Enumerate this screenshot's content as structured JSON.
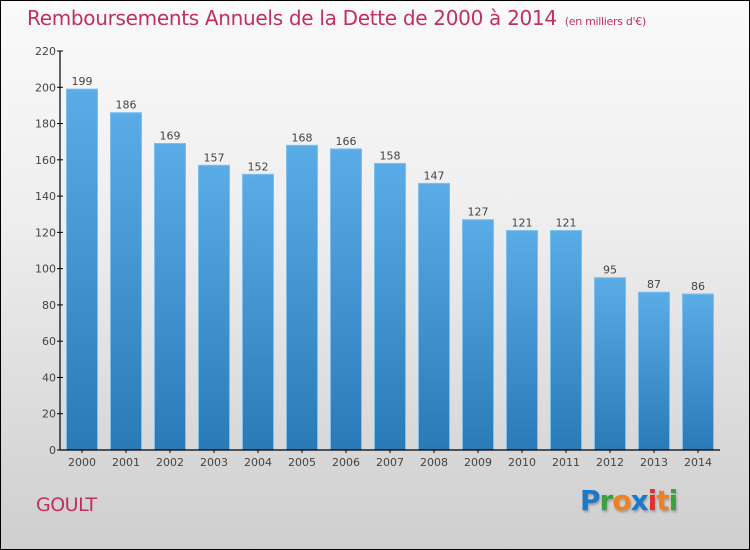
{
  "chart_data": {
    "type": "bar",
    "title": "Remboursements Annuels de la Dette de 2000 à 2014",
    "subtitle": "(en milliers d'€)",
    "xlabel": "",
    "ylabel": "",
    "categories": [
      "2000",
      "2001",
      "2002",
      "2003",
      "2004",
      "2005",
      "2006",
      "2007",
      "2008",
      "2009",
      "2010",
      "2011",
      "2012",
      "2013",
      "2014"
    ],
    "values": [
      199,
      186,
      169,
      157,
      152,
      168,
      166,
      158,
      147,
      127,
      121,
      121,
      95,
      87,
      86
    ],
    "ylim": [
      0,
      220
    ],
    "yticks": [
      0,
      20,
      40,
      60,
      80,
      100,
      120,
      140,
      160,
      180,
      200,
      220
    ],
    "grid": false,
    "legend": "none",
    "data_labels": true,
    "bar_color_top": "#5aace6",
    "bar_color_bottom": "#2a7ab8"
  },
  "footer": {
    "commune": "GOULT",
    "logo_letters": [
      {
        "ch": "P",
        "color": "#1e78c8"
      },
      {
        "ch": "r",
        "color": "#3aa040"
      },
      {
        "ch": "o",
        "color": "#f08020"
      },
      {
        "ch": "x",
        "color": "#1e78c8"
      },
      {
        "ch": "i",
        "color": "#e03030"
      },
      {
        "ch": "t",
        "color": "#f08020"
      },
      {
        "ch": "i",
        "color": "#3aa040"
      }
    ]
  },
  "colors": {
    "title": "#c0305f"
  }
}
